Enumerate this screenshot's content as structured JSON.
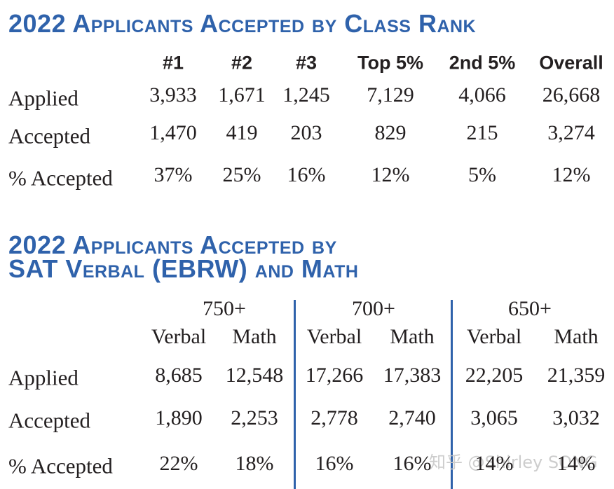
{
  "rank_table": {
    "title": "2022 Applicants Accepted by Class Rank",
    "headers": [
      "#1",
      "#2",
      "#3",
      "Top 5%",
      "2nd 5%",
      "Overall"
    ],
    "rows": [
      {
        "label": "Applied",
        "cells": [
          "3,933",
          "1,671",
          "1,245",
          "7,129",
          "4,066",
          "26,668"
        ]
      },
      {
        "label": "Accepted",
        "cells": [
          "1,470",
          "419",
          "203",
          "829",
          "215",
          "3,274"
        ]
      },
      {
        "label": "% Accepted",
        "cells": [
          "37%",
          "25%",
          "16%",
          "12%",
          "5%",
          "12%"
        ]
      }
    ]
  },
  "sat_table": {
    "title_lines": [
      "2022 Applicants Accepted by",
      "SAT Verbal (EBRW) and Math"
    ],
    "groups": [
      "750+",
      "700+",
      "650+"
    ],
    "subheaders": [
      "Verbal",
      "Math",
      "Verbal",
      "Math",
      "Verbal",
      "Math"
    ],
    "rows": [
      {
        "label": "Applied",
        "cells": [
          "8,685",
          "12,548",
          "17,266",
          "17,383",
          "22,205",
          "21,359"
        ]
      },
      {
        "label": "Accepted",
        "cells": [
          "1,890",
          "2,253",
          "2,778",
          "2,740",
          "3,065",
          "3,032"
        ]
      },
      {
        "label": "% Accepted",
        "cells": [
          "22%",
          "18%",
          "16%",
          "16%",
          "14%",
          "14%"
        ]
      }
    ]
  },
  "watermark": "知乎 @Shirley SONG"
}
